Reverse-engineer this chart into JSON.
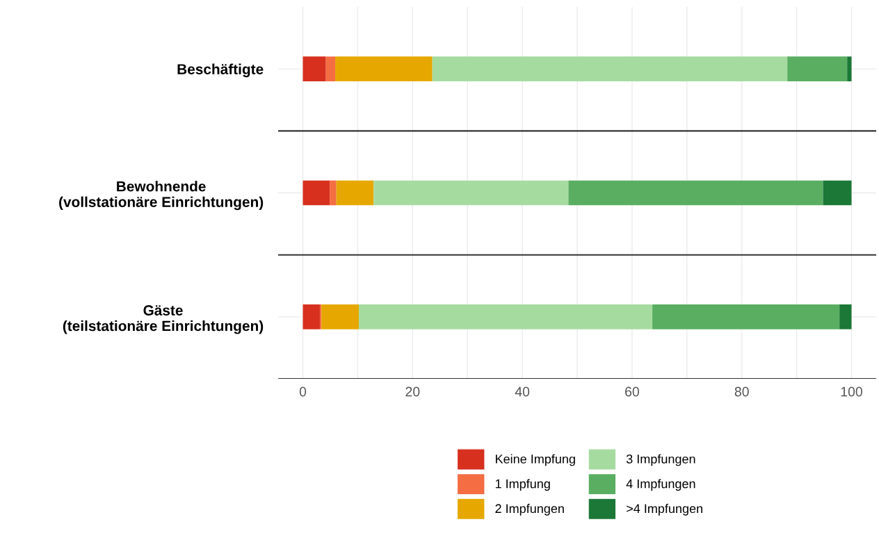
{
  "chart_data": {
    "type": "bar",
    "orientation": "horizontal",
    "stacked": true,
    "categories": [
      "Beschäftigte",
      "Bewohnende\n(vollstationäre Einrichtungen)",
      "Gäste\n(teilstationäre Einrichtungen)"
    ],
    "series": [
      {
        "name": "Keine Impfung",
        "color": "#d7301f",
        "values": [
          4.2,
          4.9,
          3.1
        ]
      },
      {
        "name": "1 Impfung",
        "color": "#f46d43",
        "values": [
          1.7,
          1.2,
          0.3
        ]
      },
      {
        "name": "2 Impfungen",
        "color": "#e6a800",
        "values": [
          17.7,
          6.8,
          6.8
        ]
      },
      {
        "name": "3 Impfungen",
        "color": "#a6dba0",
        "values": [
          64.7,
          35.5,
          53.5
        ]
      },
      {
        "name": "4 Impfungen",
        "color": "#5aae61",
        "values": [
          10.9,
          46.4,
          34.1
        ]
      },
      {
        "name": ">4 Impfungen",
        "color": "#1b7837",
        "values": [
          0.8,
          5.2,
          2.2
        ]
      }
    ],
    "xlim": [
      -4.5,
      104.5
    ],
    "xticks": [
      0,
      {
        "value": 10,
        "label": null
      },
      20,
      {
        "value": 30,
        "label": null
      },
      40,
      {
        "value": 50,
        "label": null
      },
      60,
      {
        "value": 70,
        "label": null
      },
      80,
      {
        "value": 90,
        "label": null
      },
      100
    ],
    "grid": true,
    "legend": "bottom"
  }
}
